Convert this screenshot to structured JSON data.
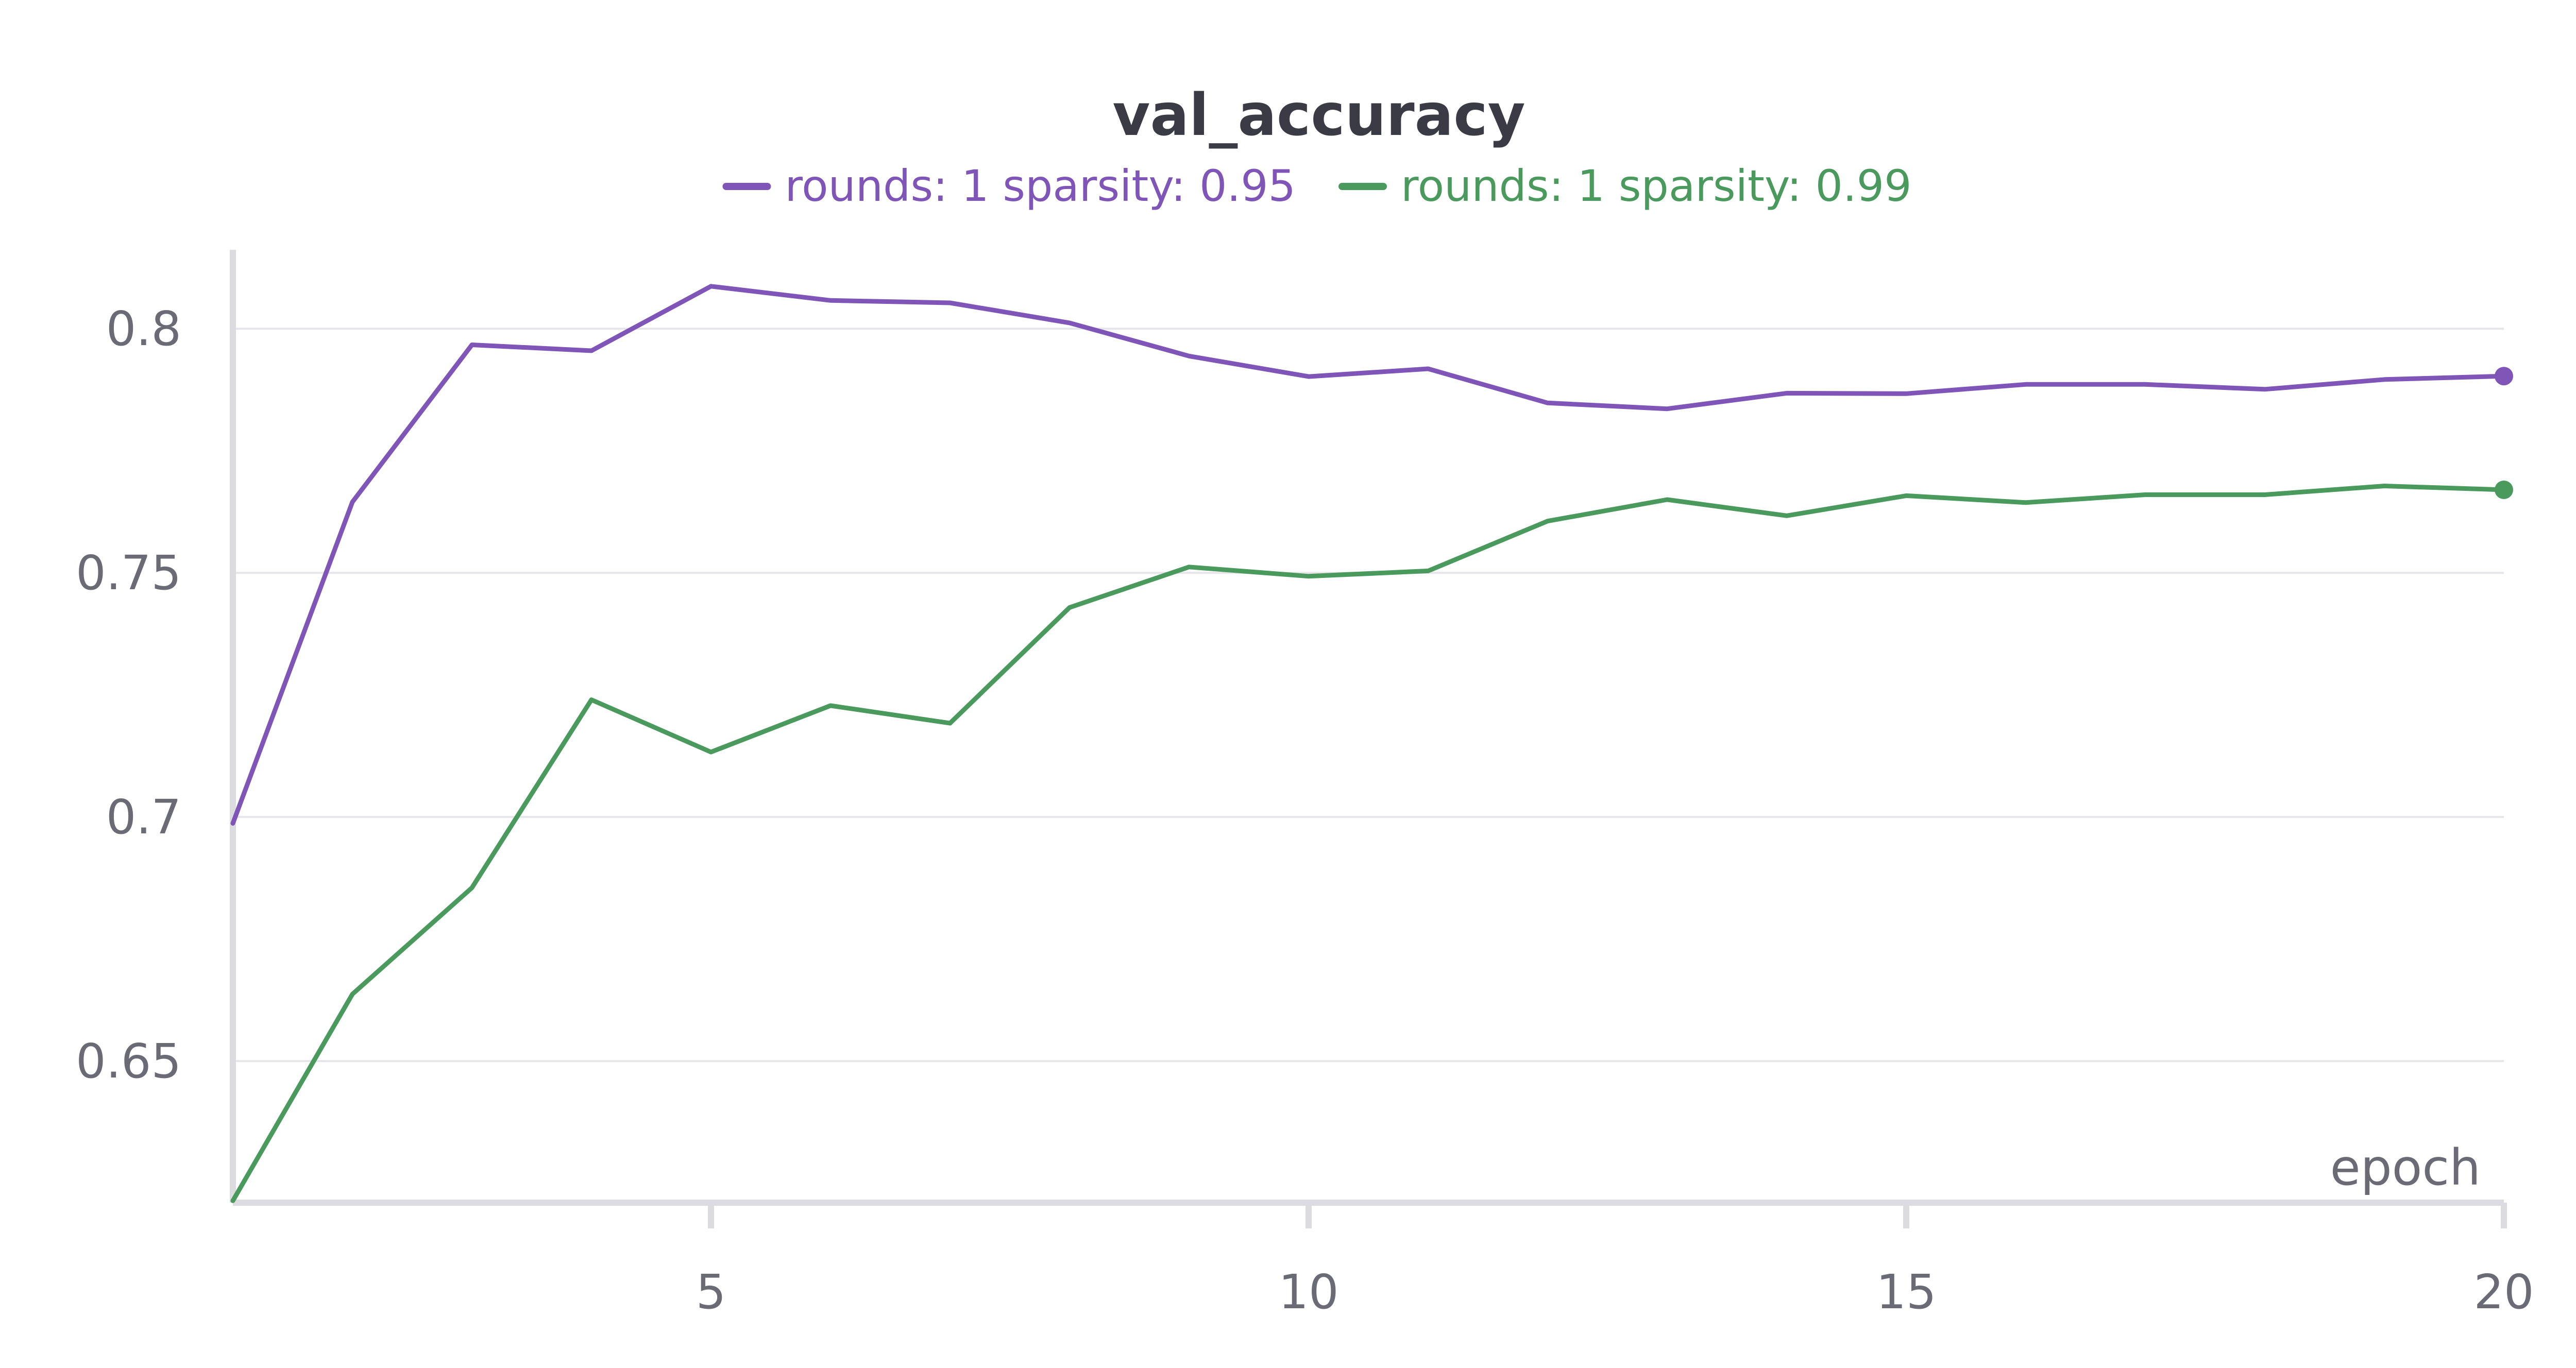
{
  "chart_data": {
    "type": "line",
    "title": "val_accuracy",
    "xlabel": "epoch",
    "ylabel": "",
    "xlim": [
      1,
      20
    ],
    "ylim": [
      0.621,
      0.813
    ],
    "x_ticks": [
      5,
      10,
      15,
      20
    ],
    "y_ticks": [
      0.65,
      0.7,
      0.75,
      0.8
    ],
    "y_tick_labels": [
      "0.65",
      "0.7",
      "0.75",
      "0.8"
    ],
    "grid": "horizontal",
    "legend_position": "top-center",
    "x": [
      1,
      2,
      3,
      4,
      5,
      6,
      7,
      8,
      9,
      10,
      11,
      12,
      13,
      14,
      15,
      16,
      17,
      18,
      19,
      20
    ],
    "series": [
      {
        "name": "rounds: 1 sparsity: 0.95",
        "color": "#7f56b8",
        "values": [
          0.6987,
          0.7645,
          0.7967,
          0.7955,
          0.8087,
          0.8058,
          0.8053,
          0.8012,
          0.7944,
          0.7902,
          0.7918,
          0.7848,
          0.7836,
          0.7868,
          0.7867,
          0.7886,
          0.7886,
          0.7876,
          0.7896,
          0.7903
        ]
      },
      {
        "name": "rounds: 1 sparsity: 0.99",
        "color": "#4a9a5e",
        "values": [
          0.6214,
          0.6637,
          0.6855,
          0.724,
          0.7133,
          0.7228,
          0.7192,
          0.7429,
          0.7512,
          0.7493,
          0.7504,
          0.7606,
          0.765,
          0.7617,
          0.7658,
          0.7644,
          0.766,
          0.766,
          0.7678,
          0.767
        ]
      }
    ]
  }
}
